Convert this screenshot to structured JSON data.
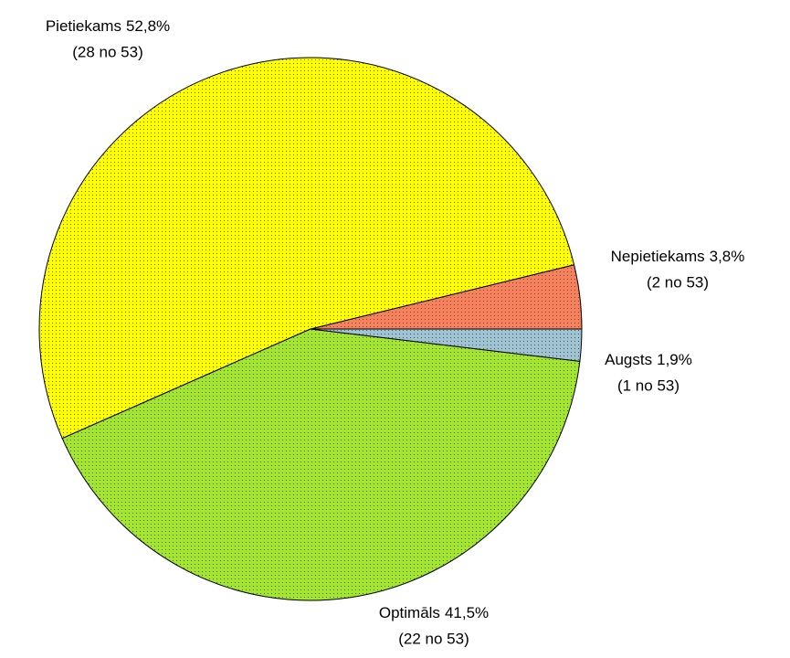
{
  "chart_data": {
    "type": "pie",
    "categories": [
      "Nepietiekams",
      "Pietiekams",
      "Optimāls",
      "Augsts"
    ],
    "values": [
      3.8,
      52.8,
      41.5,
      1.9
    ],
    "value_labels": [
      "3,8%",
      "52,8%",
      "41,5%",
      "1,9%"
    ],
    "count_labels": [
      "(2 no 53)",
      "(28 no 53)",
      "(22 no 53)",
      "(1 no 53)"
    ],
    "colors": [
      "#f8805a",
      "#ffff00",
      "#a2e62e",
      "#9ec3d2"
    ]
  }
}
